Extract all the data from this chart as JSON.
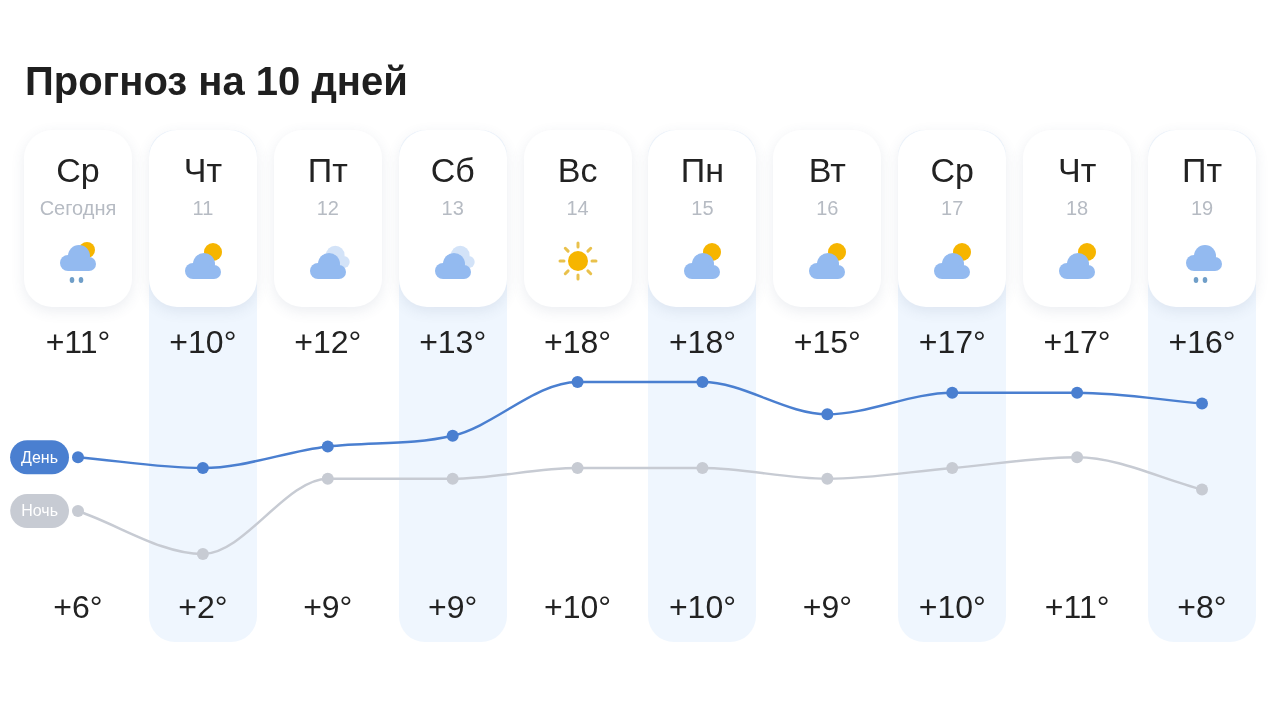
{
  "chart_data": {
    "type": "line",
    "title": "Прогноз на 10 дней",
    "categories": [
      "Ср\nСегодня",
      "Чт\n11",
      "Пт\n12",
      "Сб\n13",
      "Вс\n14",
      "Пн\n15",
      "Вт\n16",
      "Ср\n17",
      "Чт\n18",
      "Пт\n19"
    ],
    "series": [
      {
        "name": "День",
        "color": "#4a7fd0",
        "values": [
          11,
          10,
          12,
          13,
          18,
          18,
          15,
          17,
          17,
          16
        ],
        "value_labels": [
          "+11°",
          "+10°",
          "+12°",
          "+13°",
          "+18°",
          "+18°",
          "+15°",
          "+17°",
          "+17°",
          "+16°"
        ]
      },
      {
        "name": "Ночь",
        "color": "#c7cbd3",
        "values": [
          6,
          2,
          9,
          9,
          10,
          10,
          9,
          10,
          11,
          8
        ],
        "value_labels": [
          "+6°",
          "+2°",
          "+9°",
          "+9°",
          "+10°",
          "+10°",
          "+9°",
          "+10°",
          "+11°",
          "+8°"
        ]
      }
    ],
    "marker": "circle"
  }
}
